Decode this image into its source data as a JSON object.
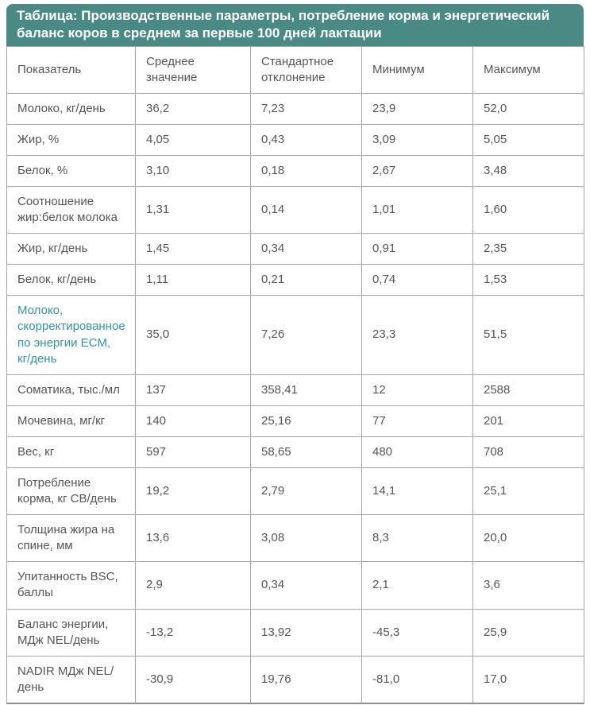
{
  "title": "Таблица: Производственные параметры, потребление корма и энергетический баланс коров в среднем за первые 100 дней лактации",
  "colors": {
    "header_bg": "#4a8a85",
    "header_text": "#ffffff",
    "accent_row_text": "#2e96a5",
    "body_text": "#555557",
    "border": "#a6a6a6"
  },
  "table": {
    "columns": [
      "Показатель",
      "Среднее значение",
      "Стандартное отклонение",
      "Минимум",
      "Максимум"
    ],
    "rows": [
      {
        "label": "Молоко, кг/день",
        "mean": "36,2",
        "sd": "7,23",
        "min": "23,9",
        "max": "52,0",
        "accent": false
      },
      {
        "label": "Жир, %",
        "mean": "4,05",
        "sd": "0,43",
        "min": "3,09",
        "max": "5,05",
        "accent": false
      },
      {
        "label": "Белок, %",
        "mean": "3,10",
        "sd": "0,18",
        "min": "2,67",
        "max": "3,48",
        "accent": false
      },
      {
        "label": "Соотношение жир:белок молока",
        "mean": "1,31",
        "sd": "0,14",
        "min": "1,01",
        "max": "1,60",
        "accent": false
      },
      {
        "label": "Жир, кг/день",
        "mean": "1,45",
        "sd": "0,34",
        "min": "0,91",
        "max": "2,35",
        "accent": false
      },
      {
        "label": "Белок, кг/день",
        "mean": "1,11",
        "sd": "0,21",
        "min": "0,74",
        "max": "1,53",
        "accent": false
      },
      {
        "label": "Молоко, скорректированное по энергии ECM, кг/день",
        "mean": "35,0",
        "sd": "7,26",
        "min": "23,3",
        "max": "51,5",
        "accent": true
      },
      {
        "label": "Соматика, тыс./мл",
        "mean": "137",
        "sd": "358,41",
        "min": "12",
        "max": "2588",
        "accent": false
      },
      {
        "label": "Мочевина, мг/кг",
        "mean": "140",
        "sd": "25,16",
        "min": "77",
        "max": "201",
        "accent": false
      },
      {
        "label": "Вес, кг",
        "mean": "597",
        "sd": "58,65",
        "min": "480",
        "max": "708",
        "accent": false
      },
      {
        "label": "Потребление корма, кг СВ/день",
        "mean": "19,2",
        "sd": "2,79",
        "min": "14,1",
        "max": "25,1",
        "accent": false
      },
      {
        "label": "Толщина жира на спине, мм",
        "mean": "13,6",
        "sd": "3,08",
        "min": "8,3",
        "max": "20,0",
        "accent": false
      },
      {
        "label": "Упитанность BSC, баллы",
        "mean": "2,9",
        "sd": "0,34",
        "min": "2,1",
        "max": "3,6",
        "accent": false
      },
      {
        "label": "Баланс энергии, МДж NEL/день",
        "mean": "-13,2",
        "sd": "13,92",
        "min": "-45,3",
        "max": "25,9",
        "accent": false
      },
      {
        "label": "NADIR МДж NEL/день",
        "mean": "-30,9",
        "sd": "19,76",
        "min": "-81,0",
        "max": "17,0",
        "accent": false
      }
    ]
  }
}
